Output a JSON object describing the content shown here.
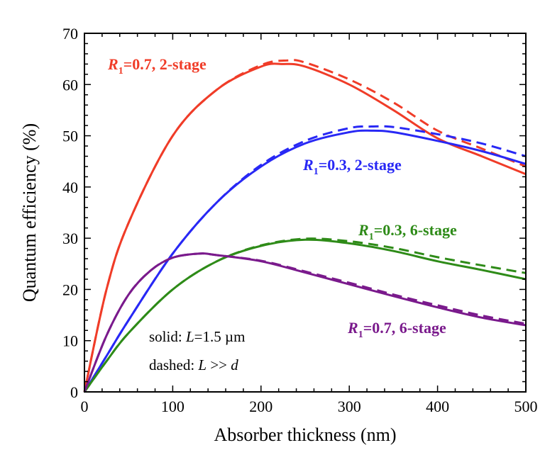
{
  "chart_data": {
    "type": "line",
    "title": "",
    "xlabel": "Absorber thickness (nm)",
    "ylabel": "Quantum efficiency (%)",
    "xlim": [
      0,
      500
    ],
    "ylim": [
      0,
      70
    ],
    "xticks": [
      "0",
      "100",
      "200",
      "300",
      "400",
      "500"
    ],
    "yticks": [
      "0",
      "10",
      "20",
      "30",
      "40",
      "50",
      "60",
      "70"
    ],
    "grid": false,
    "notes": {
      "solid_prefix": "solid: ",
      "solid_var": "L",
      "solid_rest": "=1.5 µm",
      "dashed_prefix": "dashed: ",
      "dashed_var": "L",
      "dashed_mid": " >> ",
      "dashed_var2": "d"
    },
    "series": [
      {
        "label_var": "R",
        "label_sub": "1",
        "label_rest": "=0.7, 2-stage",
        "color": "#f03c28",
        "style": "solid",
        "x": [
          0,
          25,
          50,
          100,
          150,
          200,
          225,
          250,
          300,
          350,
          400,
          450,
          500
        ],
        "y": [
          0,
          20,
          33,
          50,
          59,
          63.5,
          64,
          63.5,
          60,
          55,
          49.5,
          46,
          42.5
        ]
      },
      {
        "color": "#f03c28",
        "style": "dashed",
        "x": [
          0,
          25,
          50,
          100,
          150,
          200,
          230,
          250,
          300,
          350,
          400,
          450,
          500
        ],
        "y": [
          0,
          20,
          33,
          50,
          59,
          63.8,
          64.7,
          64.3,
          61,
          56.5,
          51,
          47.5,
          44
        ]
      },
      {
        "label_var": "R",
        "label_sub": "1",
        "label_rest": "=0.3, 2-stage",
        "color": "#2828f5",
        "style": "solid",
        "x": [
          0,
          25,
          50,
          100,
          150,
          200,
          250,
          300,
          325,
          350,
          400,
          450,
          500
        ],
        "y": [
          0,
          7,
          14,
          27,
          37,
          44,
          48.5,
          50.7,
          51,
          50.7,
          49,
          47,
          44.5
        ]
      },
      {
        "color": "#2828f5",
        "style": "dashed",
        "x": [
          0,
          25,
          50,
          100,
          150,
          200,
          250,
          300,
          325,
          350,
          400,
          450,
          500
        ],
        "y": [
          0,
          7,
          14,
          27,
          37,
          44.3,
          49,
          51.5,
          51.8,
          51.7,
          50.3,
          48.5,
          46
        ]
      },
      {
        "label_var": "R",
        "label_sub": "1",
        "label_rest": "=0.3, 6-stage",
        "color": "#2e8b18",
        "style": "solid",
        "x": [
          0,
          25,
          50,
          100,
          150,
          200,
          250,
          300,
          350,
          400,
          450,
          500
        ],
        "y": [
          0,
          6,
          11.5,
          20,
          25.5,
          28.5,
          29.7,
          29,
          27.5,
          25.5,
          23.8,
          22
        ]
      },
      {
        "color": "#2e8b18",
        "style": "dashed",
        "x": [
          0,
          25,
          50,
          100,
          150,
          200,
          250,
          300,
          350,
          400,
          450,
          500
        ],
        "y": [
          0,
          6,
          11.5,
          20,
          25.5,
          28.6,
          29.9,
          29.4,
          28.1,
          26.3,
          24.7,
          23.2
        ]
      },
      {
        "label_var": "R",
        "label_sub": "1",
        "label_rest": "=0.7, 6-stage",
        "color": "#7a1a8c",
        "style": "solid",
        "x": [
          0,
          25,
          50,
          75,
          100,
          130,
          150,
          200,
          250,
          300,
          350,
          400,
          450,
          500
        ],
        "y": [
          0,
          11,
          19,
          23.7,
          26.2,
          27,
          26.7,
          25.5,
          23.3,
          21,
          18.7,
          16.5,
          14.5,
          13
        ]
      },
      {
        "color": "#7a1a8c",
        "style": "dashed",
        "x": [
          0,
          25,
          50,
          75,
          100,
          130,
          150,
          200,
          250,
          300,
          350,
          400,
          450,
          500
        ],
        "y": [
          0,
          11,
          19,
          23.7,
          26.2,
          27,
          26.7,
          25.6,
          23.5,
          21.3,
          19,
          16.9,
          14.9,
          13.3
        ]
      }
    ]
  }
}
